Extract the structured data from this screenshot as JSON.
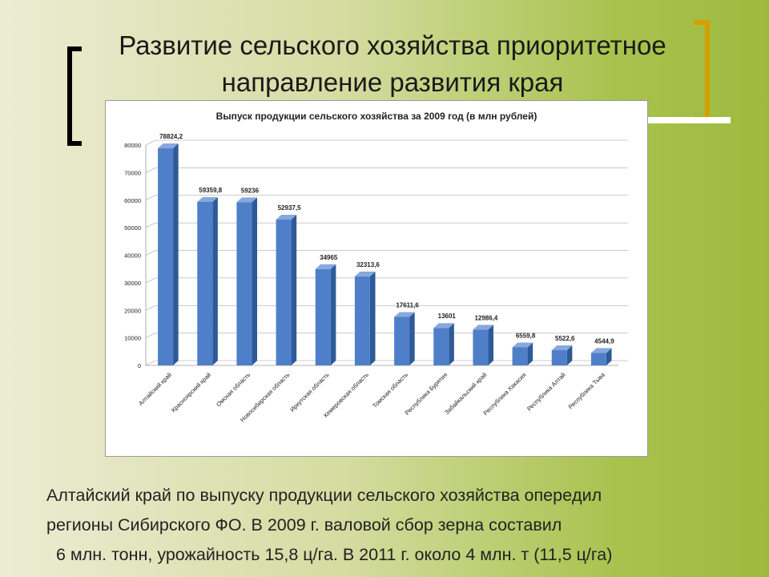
{
  "slide": {
    "title_line1": "Развитие сельского хозяйства приоритетное",
    "title_line2": "направление развития края",
    "caption_line1": "Алтайский край по выпуску продукции сельского хозяйства оперeдил",
    "caption_line2": "регионы Сибирского ФО. В 2009 г. валовой сбор зерна составил",
    "caption_line3": "6 млн. тонн, урожайность 15,8 ц/га. В 2011 г. около 4 млн. т (11,5 ц/га)"
  },
  "colors": {
    "bar_front": "#4f7fc8",
    "bar_side": "#2f5a99",
    "bar_top": "#86a8dc",
    "grid": "#9a9a9a"
  },
  "chart_data": {
    "type": "bar",
    "title": "Выпуск продукции сельского хозяйства за 2009 год (в млн рублей)",
    "xlabel": "",
    "ylabel": "",
    "ylim": [
      0,
      80000
    ],
    "yticks": [
      "0",
      "10000",
      "20000",
      "30000",
      "40000",
      "50000",
      "60000",
      "70000",
      "80000"
    ],
    "grid": true,
    "categories": [
      "Алтайский край",
      "Красноярский край",
      "Омская область",
      "Новосибирская область",
      "Иркутская область",
      "Кемеровская область",
      "Томская область",
      "Республика Бурятия",
      "Забайкальский край",
      "Республика Хакасия",
      "Республика Алтай",
      "Республика Тыва"
    ],
    "values": [
      78824.2,
      59359.8,
      59236,
      52937.5,
      34965,
      32313.6,
      17611.6,
      13601,
      12986.4,
      6559.8,
      5522.6,
      4544.9
    ],
    "labels": [
      "78824,2",
      "59359,8",
      "59236",
      "52937,5",
      "34965",
      "32313,6",
      "17611,6",
      "13601",
      "12986,4",
      "6559,8",
      "5522,6",
      "4544,9"
    ]
  }
}
